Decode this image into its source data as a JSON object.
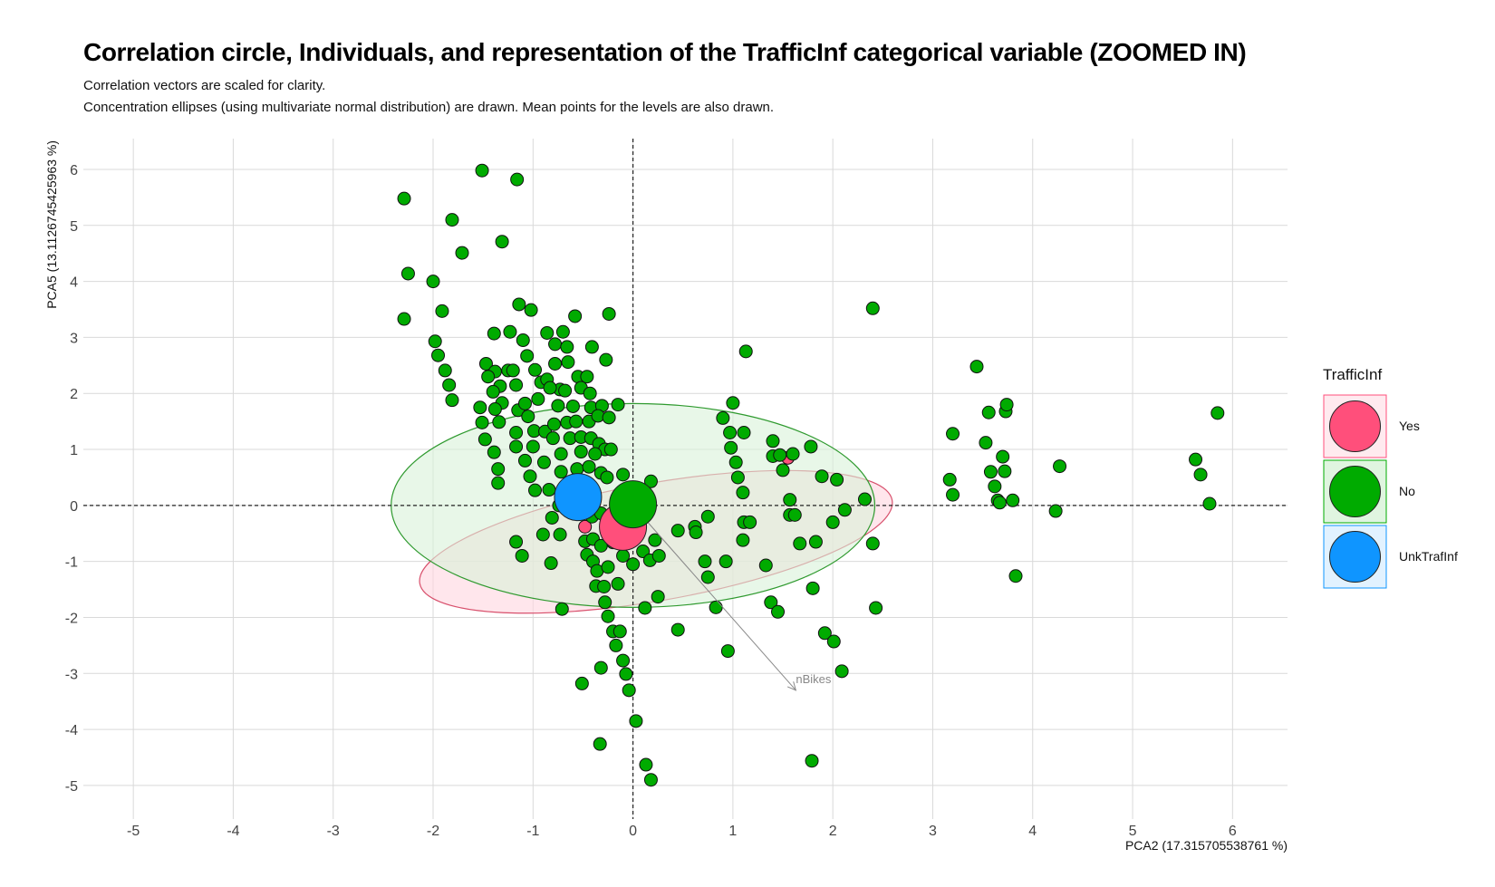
{
  "title": "Correlation circle, Individuals, and representation of the TrafficInf categorical variable (ZOOMED IN)",
  "subtitle_lines": [
    "Correlation vectors are scaled for clarity.",
    "Concentration ellipses (using multivariate normal distribution) are drawn. Mean points for the levels are also drawn."
  ],
  "chart_data": {
    "type": "scatter",
    "xlabel": "PCA2 (17.315705538761 %)",
    "ylabel": "PCA5 (13.1126745425963 %)",
    "xlim": [
      -5.5,
      6.55
    ],
    "ylim": [
      -5.6,
      6.55
    ],
    "x_ticks": [
      -5,
      -4,
      -3,
      -2,
      -1,
      0,
      1,
      2,
      3,
      4,
      5,
      6
    ],
    "y_ticks": [
      -5,
      -4,
      -3,
      -2,
      -1,
      0,
      1,
      2,
      3,
      4,
      5,
      6
    ],
    "grid": true,
    "reference_lines": {
      "x": 0,
      "y": 0,
      "style": "dashed"
    },
    "legend": {
      "title": "TrafficInf",
      "placement": "right",
      "entries": [
        {
          "label": "Yes",
          "color": "#ff4f7b"
        },
        {
          "label": "No",
          "color": "#00ab00"
        },
        {
          "label": "UnkTrafInf",
          "color": "#0f95ff"
        }
      ]
    },
    "ellipses": [
      {
        "level": "Yes",
        "cx": 0.23,
        "cy": -0.65,
        "rx": 2.4,
        "ry": 1.05,
        "angle_deg": 10,
        "stroke": "#d8506c",
        "fill": "#ffd5e0"
      },
      {
        "level": "No",
        "cx": 0.0,
        "cy": 0.0,
        "rx": 2.42,
        "ry": 1.82,
        "angle_deg": 0,
        "stroke": "#2f9a2f",
        "fill": "#d9f2d9"
      }
    ],
    "level_means": [
      {
        "level": "Yes",
        "x": -0.1,
        "y": -0.38,
        "color": "#ff4f7b"
      },
      {
        "level": "No",
        "x": 0.0,
        "y": 0.02,
        "color": "#00ab00"
      },
      {
        "level": "UnkTrafInf",
        "x": -0.55,
        "y": 0.15,
        "color": "#0f95ff"
      }
    ],
    "vectors": [
      {
        "label": "nBikes",
        "x0": 0.0,
        "y0": 0.0,
        "x1": 1.63,
        "y1": -3.3
      }
    ],
    "series": [
      {
        "name": "Yes",
        "color": "#ff4f7b",
        "points": [
          [
            -0.48,
            -0.38
          ],
          [
            1.55,
            0.85
          ]
        ]
      },
      {
        "name": "No",
        "color": "#00ab00",
        "points": [
          [
            -2.29,
            5.48
          ],
          [
            -1.51,
            5.98
          ],
          [
            -1.16,
            5.82
          ],
          [
            -1.81,
            5.1
          ],
          [
            -1.31,
            4.71
          ],
          [
            -1.71,
            4.51
          ],
          [
            -2.25,
            4.14
          ],
          [
            -2.0,
            4.0
          ],
          [
            -2.29,
            3.33
          ],
          [
            -1.91,
            3.47
          ],
          [
            -1.14,
            3.59
          ],
          [
            -1.02,
            3.49
          ],
          [
            -0.58,
            3.38
          ],
          [
            -0.24,
            3.42
          ],
          [
            -1.39,
            3.07
          ],
          [
            -1.23,
            3.1
          ],
          [
            -0.86,
            3.08
          ],
          [
            -0.7,
            3.1
          ],
          [
            -1.1,
            2.95
          ],
          [
            -0.78,
            2.88
          ],
          [
            -0.66,
            2.83
          ],
          [
            -0.41,
            2.83
          ],
          [
            -1.98,
            2.93
          ],
          [
            -1.95,
            2.68
          ],
          [
            -1.88,
            2.41
          ],
          [
            -1.84,
            2.15
          ],
          [
            -1.81,
            1.88
          ],
          [
            -1.47,
            2.53
          ],
          [
            -1.38,
            2.39
          ],
          [
            -1.45,
            2.3
          ],
          [
            -1.25,
            2.41
          ],
          [
            -1.06,
            2.67
          ],
          [
            -0.98,
            2.42
          ],
          [
            -0.92,
            2.2
          ],
          [
            -0.78,
            2.53
          ],
          [
            -0.65,
            2.56
          ],
          [
            -0.55,
            2.3
          ],
          [
            -0.46,
            2.3
          ],
          [
            -0.27,
            2.6
          ],
          [
            -1.33,
            2.13
          ],
          [
            -1.4,
            2.03
          ],
          [
            -1.17,
            2.15
          ],
          [
            -1.2,
            2.41
          ],
          [
            -0.86,
            2.25
          ],
          [
            -0.73,
            2.07
          ],
          [
            -0.68,
            2.05
          ],
          [
            -0.52,
            2.1
          ],
          [
            -0.43,
            2.0
          ],
          [
            -1.53,
            1.75
          ],
          [
            -1.31,
            1.83
          ],
          [
            -1.15,
            1.7
          ],
          [
            -1.08,
            1.82
          ],
          [
            -0.95,
            1.9
          ],
          [
            -0.83,
            2.1
          ],
          [
            -0.75,
            1.78
          ],
          [
            -0.6,
            1.77
          ],
          [
            -0.42,
            1.75
          ],
          [
            -0.31,
            1.78
          ],
          [
            -0.15,
            1.8
          ],
          [
            -1.38,
            1.72
          ],
          [
            -1.51,
            1.48
          ],
          [
            -1.34,
            1.49
          ],
          [
            -1.17,
            1.3
          ],
          [
            -1.05,
            1.59
          ],
          [
            -0.99,
            1.33
          ],
          [
            -0.88,
            1.32
          ],
          [
            -0.79,
            1.45
          ],
          [
            -0.66,
            1.48
          ],
          [
            -0.57,
            1.5
          ],
          [
            -0.44,
            1.5
          ],
          [
            -0.35,
            1.6
          ],
          [
            -0.24,
            1.57
          ],
          [
            -1.48,
            1.18
          ],
          [
            -1.39,
            0.95
          ],
          [
            -1.17,
            1.05
          ],
          [
            -1.0,
            1.05
          ],
          [
            -0.8,
            1.2
          ],
          [
            -0.63,
            1.2
          ],
          [
            -0.52,
            1.22
          ],
          [
            -0.42,
            1.2
          ],
          [
            -0.34,
            1.1
          ],
          [
            -0.28,
            1.0
          ],
          [
            -1.35,
            0.65
          ],
          [
            -1.35,
            0.4
          ],
          [
            -1.08,
            0.8
          ],
          [
            -0.89,
            0.77
          ],
          [
            -0.72,
            0.92
          ],
          [
            -0.52,
            0.96
          ],
          [
            -0.38,
            0.92
          ],
          [
            -0.22,
            1.0
          ],
          [
            -1.03,
            0.52
          ],
          [
            -0.98,
            0.27
          ],
          [
            -0.84,
            0.28
          ],
          [
            -0.72,
            0.6
          ],
          [
            -0.56,
            0.65
          ],
          [
            -0.44,
            0.69
          ],
          [
            -0.32,
            0.58
          ],
          [
            -0.26,
            0.5
          ],
          [
            -0.1,
            0.55
          ],
          [
            -0.74,
            0.0
          ],
          [
            -0.81,
            -0.22
          ],
          [
            -0.58,
            -0.14
          ],
          [
            -0.41,
            -0.2
          ],
          [
            -0.32,
            -0.14
          ],
          [
            -0.23,
            -0.22
          ],
          [
            -0.12,
            -0.32
          ],
          [
            0.05,
            -0.3
          ],
          [
            0.14,
            -0.1
          ],
          [
            0.18,
            0.43
          ],
          [
            -1.17,
            -0.65
          ],
          [
            -1.11,
            -0.9
          ],
          [
            -0.9,
            -0.52
          ],
          [
            -0.73,
            -0.52
          ],
          [
            -0.48,
            -0.64
          ],
          [
            -0.4,
            -0.6
          ],
          [
            -0.32,
            -0.72
          ],
          [
            -0.2,
            -0.66
          ],
          [
            -0.05,
            -0.6
          ],
          [
            0.1,
            -0.82
          ],
          [
            0.22,
            -0.62
          ],
          [
            -0.82,
            -1.03
          ],
          [
            -0.46,
            -0.88
          ],
          [
            -0.4,
            -1.0
          ],
          [
            -0.36,
            -1.17
          ],
          [
            -0.25,
            -1.1
          ],
          [
            -0.1,
            -0.9
          ],
          [
            0.0,
            -1.05
          ],
          [
            0.17,
            -0.98
          ],
          [
            0.26,
            -0.9
          ],
          [
            -0.37,
            -1.44
          ],
          [
            -0.29,
            -1.45
          ],
          [
            -0.15,
            -1.4
          ],
          [
            -0.28,
            -1.73
          ],
          [
            -0.71,
            -1.85
          ],
          [
            -0.25,
            -1.98
          ],
          [
            -0.2,
            -2.25
          ],
          [
            -0.13,
            -2.25
          ],
          [
            -0.17,
            -2.5
          ],
          [
            -0.1,
            -2.77
          ],
          [
            -0.07,
            -3.01
          ],
          [
            -0.04,
            -3.3
          ],
          [
            -0.32,
            -2.9
          ],
          [
            -0.51,
            -3.18
          ],
          [
            0.03,
            -3.85
          ],
          [
            -0.33,
            -4.26
          ],
          [
            0.13,
            -4.63
          ],
          [
            0.18,
            -4.9
          ],
          [
            0.25,
            -1.63
          ],
          [
            0.12,
            -1.83
          ],
          [
            0.45,
            -2.22
          ],
          [
            0.45,
            -0.45
          ],
          [
            0.62,
            -0.38
          ],
          [
            0.63,
            -0.48
          ],
          [
            0.75,
            -0.2
          ],
          [
            0.72,
            -1.0
          ],
          [
            0.93,
            -1.0
          ],
          [
            0.75,
            -1.28
          ],
          [
            0.83,
            -1.82
          ],
          [
            0.95,
            -2.6
          ],
          [
            0.9,
            1.56
          ],
          [
            0.97,
            1.3
          ],
          [
            1.0,
            1.83
          ],
          [
            0.98,
            1.03
          ],
          [
            1.03,
            0.77
          ],
          [
            1.05,
            0.5
          ],
          [
            1.1,
            0.23
          ],
          [
            1.11,
            1.3
          ],
          [
            1.11,
            -0.3
          ],
          [
            1.17,
            -0.3
          ],
          [
            1.1,
            -0.62
          ],
          [
            1.13,
            2.75
          ],
          [
            1.4,
            1.15
          ],
          [
            1.4,
            0.88
          ],
          [
            1.47,
            0.9
          ],
          [
            1.5,
            0.63
          ],
          [
            1.57,
            0.1
          ],
          [
            1.57,
            -0.17
          ],
          [
            1.62,
            -0.17
          ],
          [
            1.6,
            0.92
          ],
          [
            1.33,
            -1.07
          ],
          [
            1.38,
            -1.73
          ],
          [
            1.45,
            -1.9
          ],
          [
            1.78,
            1.05
          ],
          [
            1.67,
            -0.68
          ],
          [
            1.83,
            -0.65
          ],
          [
            1.89,
            0.52
          ],
          [
            2.04,
            0.46
          ],
          [
            2.12,
            -0.08
          ],
          [
            2.0,
            -0.3
          ],
          [
            1.8,
            -1.48
          ],
          [
            1.92,
            -2.28
          ],
          [
            2.01,
            -2.43
          ],
          [
            2.09,
            -2.96
          ],
          [
            1.79,
            -4.56
          ],
          [
            2.32,
            0.11
          ],
          [
            2.4,
            -0.68
          ],
          [
            2.43,
            -1.83
          ],
          [
            2.4,
            3.52
          ],
          [
            3.17,
            0.46
          ],
          [
            3.2,
            0.19
          ],
          [
            3.2,
            1.28
          ],
          [
            3.44,
            2.48
          ],
          [
            3.53,
            1.12
          ],
          [
            3.56,
            1.66
          ],
          [
            3.62,
            0.34
          ],
          [
            3.58,
            0.6
          ],
          [
            3.65,
            0.09
          ],
          [
            3.67,
            0.05
          ],
          [
            3.7,
            0.87
          ],
          [
            3.72,
            0.61
          ],
          [
            3.73,
            1.68
          ],
          [
            3.74,
            1.8
          ],
          [
            3.8,
            0.09
          ],
          [
            3.83,
            -1.26
          ],
          [
            4.23,
            -0.1
          ],
          [
            4.27,
            0.7
          ],
          [
            5.63,
            0.82
          ],
          [
            5.68,
            0.55
          ],
          [
            5.77,
            0.03
          ],
          [
            5.85,
            1.65
          ]
        ]
      }
    ]
  }
}
